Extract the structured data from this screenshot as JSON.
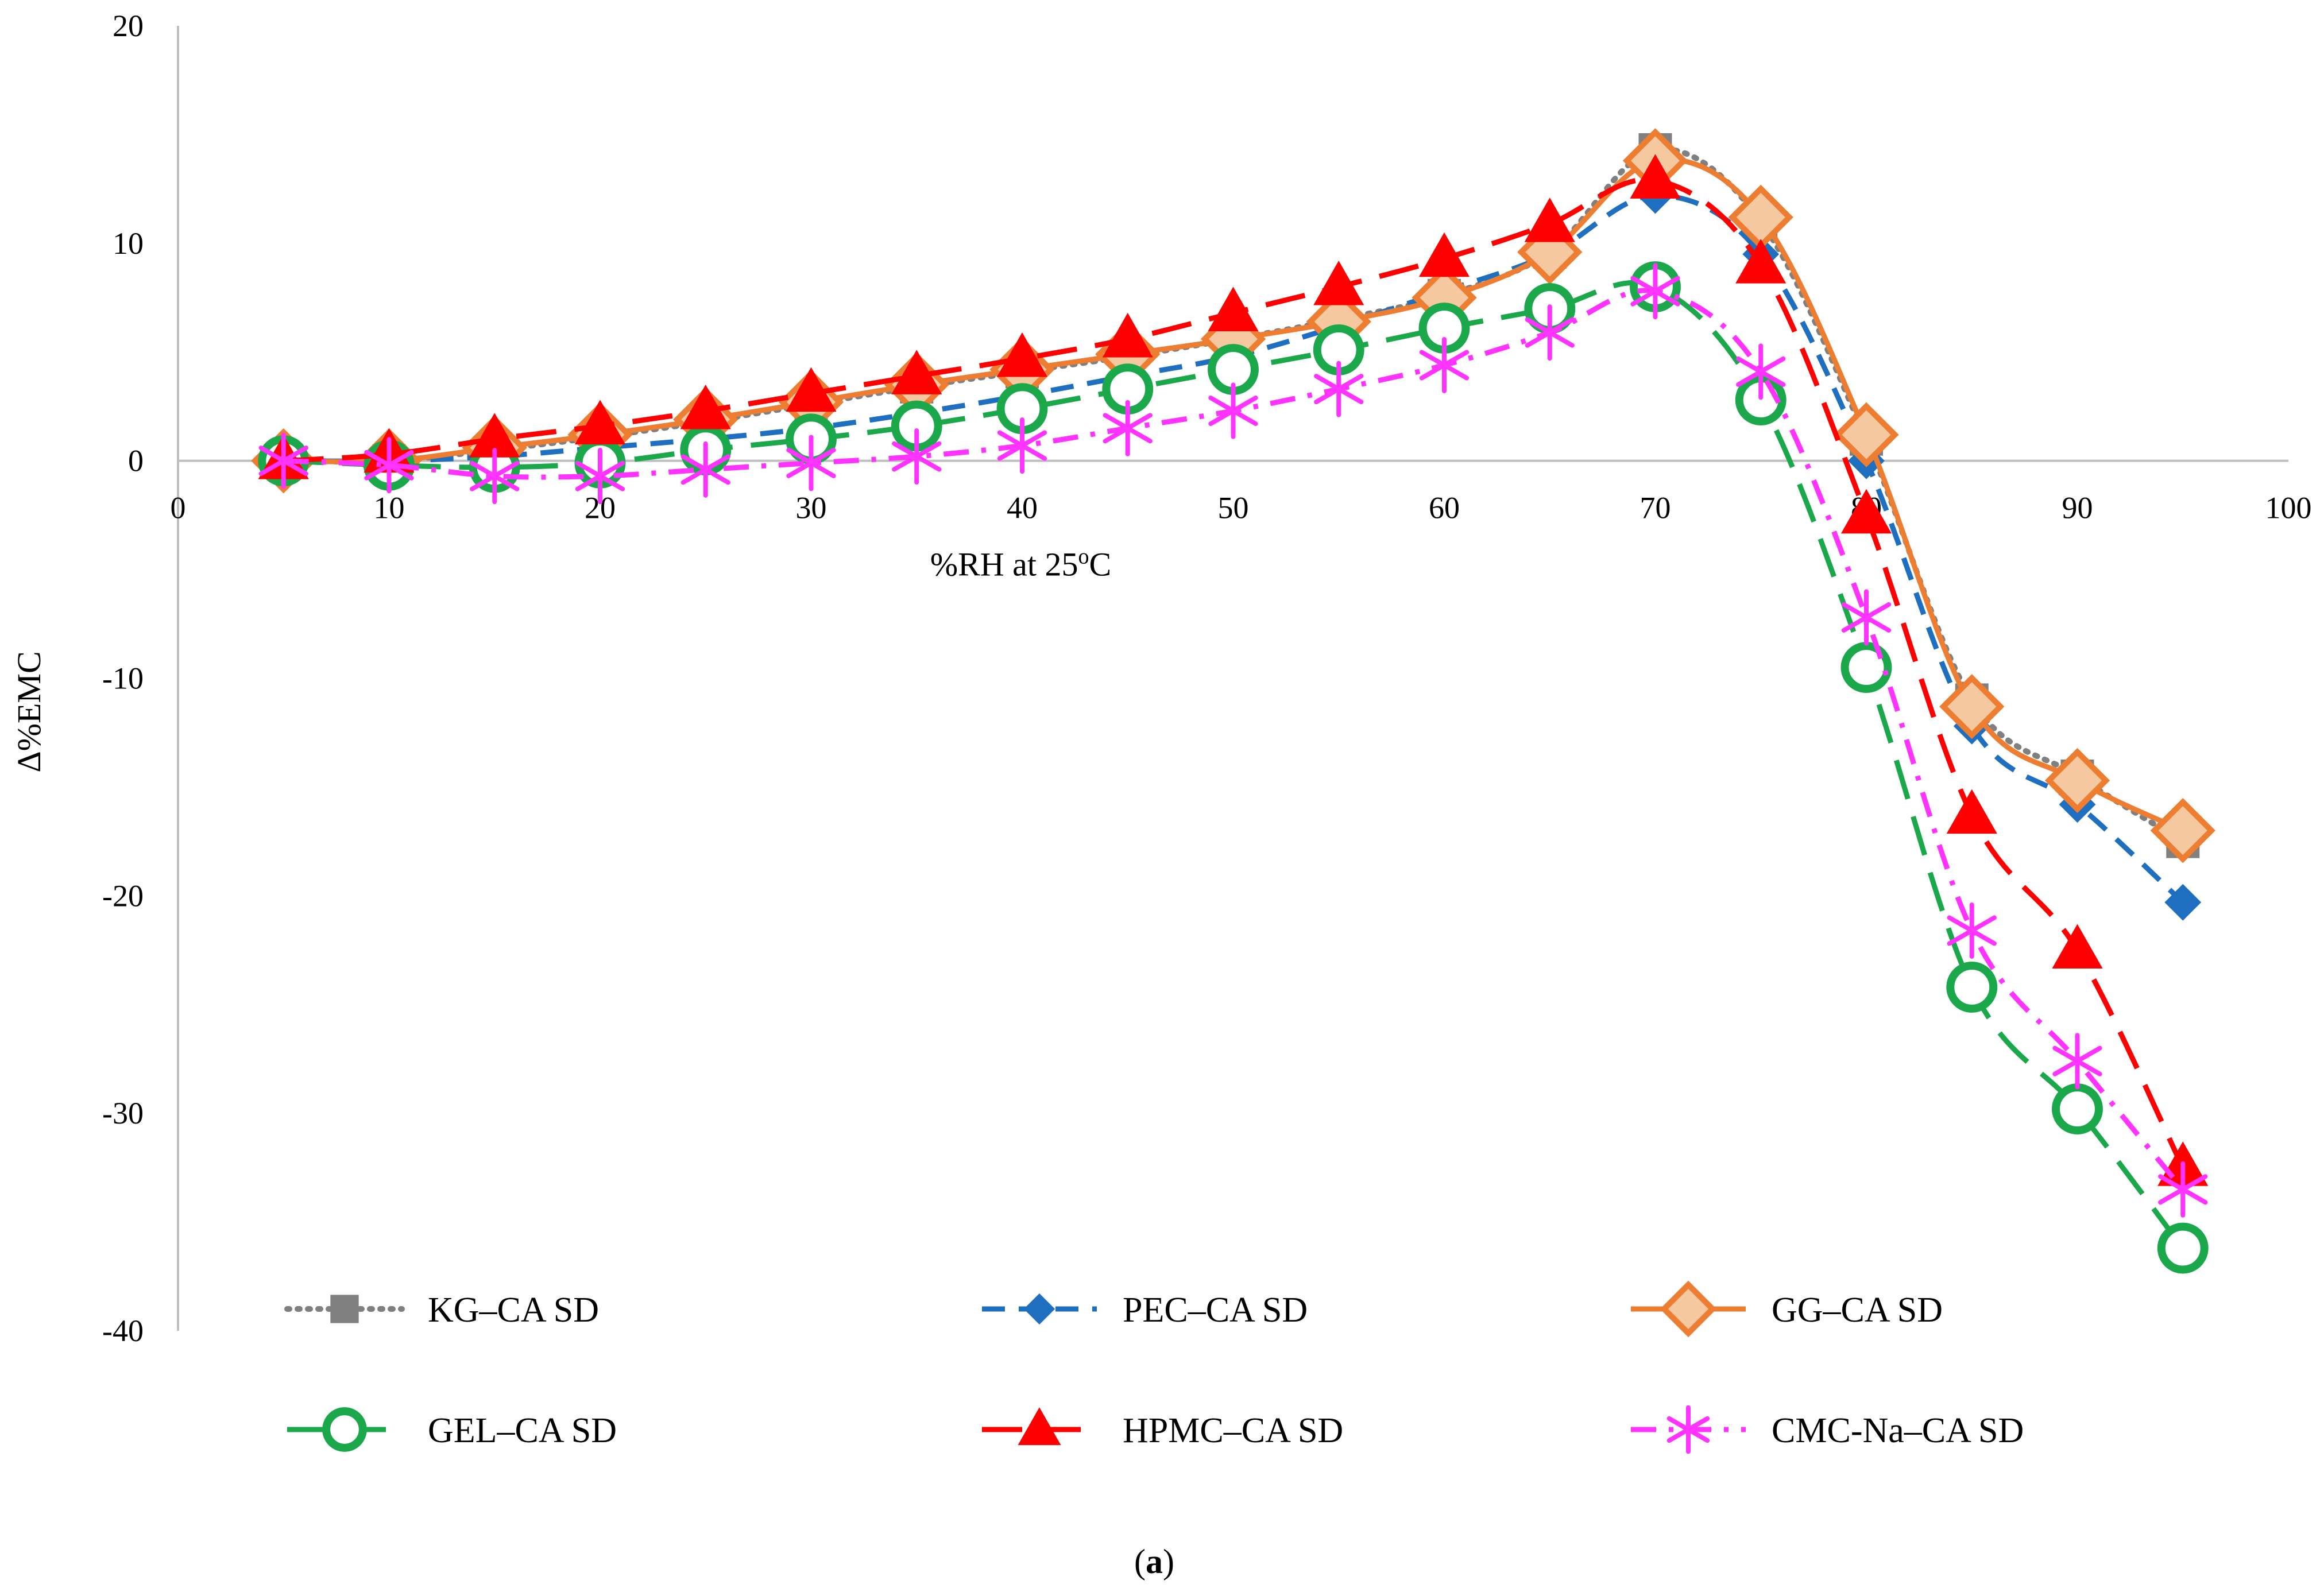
{
  "chart_data": {
    "type": "line",
    "title": "",
    "xlabel": "%RH at 25",
    "xlabel_sup": "o",
    "xlabel_suffix": "C",
    "ylabel": "Δ%EMC",
    "xlim": [
      0,
      100
    ],
    "ylim": [
      -40,
      20
    ],
    "xticks": [
      0,
      10,
      20,
      30,
      40,
      50,
      60,
      70,
      80,
      90,
      100
    ],
    "yticks": [
      20,
      10,
      0,
      -10,
      -20,
      -30,
      -40
    ],
    "grid": false,
    "legend_position": "bottom",
    "x": [
      5,
      10,
      15,
      20,
      25,
      30,
      35,
      40,
      45,
      50,
      55,
      60,
      65,
      70,
      75,
      80,
      85,
      90,
      95
    ],
    "series": [
      {
        "name": "KG–CA SD",
        "color": "#808080",
        "dash": "dotted",
        "marker": "square",
        "values": [
          0,
          0,
          0.5,
          1.1,
          1.8,
          2.6,
          3.4,
          4.1,
          4.8,
          5.6,
          6.5,
          7.6,
          9.6,
          14.3,
          11.0,
          1.0,
          -11.0,
          -14.5,
          -17.5
        ]
      },
      {
        "name": "PEC–CA SD",
        "color": "#1f6fc0",
        "dash": "dashed",
        "marker": "diamond",
        "values": [
          0,
          0,
          0.2,
          0.6,
          1.0,
          1.5,
          2.2,
          3.0,
          3.9,
          4.8,
          6.2,
          7.8,
          9.5,
          12.2,
          9.5,
          0,
          -12.2,
          -15.8,
          -20.3
        ]
      },
      {
        "name": "GG–CA SD",
        "color": "#ed7d31",
        "dash": "solid",
        "marker": "open-diamond",
        "values": [
          0,
          0,
          0.6,
          1.2,
          1.9,
          2.7,
          3.5,
          4.2,
          4.9,
          5.6,
          6.4,
          7.5,
          9.6,
          13.8,
          11.2,
          1.2,
          -11.3,
          -14.7,
          -17.0
        ]
      },
      {
        "name": "GEL–CA SD",
        "color": "#1aa84b",
        "dash": "long-dash",
        "marker": "open-circle",
        "values": [
          0,
          -0.2,
          -0.3,
          -0.1,
          0.5,
          1.0,
          1.6,
          2.4,
          3.3,
          4.2,
          5.1,
          6.1,
          7.0,
          8.0,
          2.8,
          -9.5,
          -24.2,
          -29.8,
          -36.2
        ]
      },
      {
        "name": "HPMC–CA SD",
        "color": "#ff0000",
        "dash": "long-dash",
        "marker": "triangle",
        "values": [
          0,
          0.3,
          1.0,
          1.6,
          2.3,
          3.1,
          3.9,
          4.7,
          5.6,
          6.8,
          8.0,
          9.3,
          10.9,
          12.9,
          9.0,
          -2.5,
          -16.3,
          -22.5,
          -32.5
        ]
      },
      {
        "name": "CMC-Na–CA SD",
        "color": "#ff33ff",
        "dash": "dash-dot",
        "marker": "asterisk",
        "values": [
          0,
          -0.2,
          -0.7,
          -0.7,
          -0.4,
          -0.1,
          0.2,
          0.7,
          1.5,
          2.3,
          3.3,
          4.4,
          5.9,
          7.8,
          4.1,
          -7.2,
          -21.6,
          -27.6,
          -33.5
        ]
      }
    ]
  },
  "caption": {
    "open": "(",
    "letter": "a",
    "close": ")"
  }
}
